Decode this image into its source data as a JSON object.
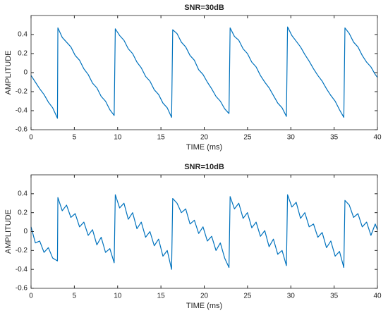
{
  "chart_data": [
    {
      "type": "line",
      "title": "SNR=30dB",
      "xlabel": "TIME (ms)",
      "ylabel": "AMPLITUDE",
      "x": [
        0,
        0.5,
        1,
        1.5,
        2,
        2.5,
        3.05,
        3.1,
        3.6,
        4.1,
        4.6,
        5.1,
        5.6,
        6.1,
        6.6,
        7.1,
        7.6,
        8.1,
        8.6,
        9.1,
        9.6,
        9.73,
        10.23,
        10.73,
        11.23,
        11.73,
        12.23,
        12.73,
        13.23,
        13.73,
        14.23,
        14.73,
        15.23,
        15.73,
        16.23,
        16.36,
        16.86,
        17.36,
        17.86,
        18.36,
        18.86,
        19.36,
        19.86,
        20.36,
        20.86,
        21.36,
        21.86,
        22.36,
        22.86,
        22.99,
        23.49,
        23.99,
        24.49,
        24.99,
        25.49,
        25.99,
        26.49,
        26.99,
        27.49,
        27.99,
        28.49,
        28.99,
        29.49,
        29.62,
        30.12,
        30.62,
        31.12,
        31.62,
        32.12,
        32.62,
        33.12,
        33.62,
        34.12,
        34.62,
        35.12,
        35.62,
        36.12,
        36.25,
        36.75,
        37.25,
        37.75,
        38.25,
        38.75,
        39.25,
        39.75,
        40
      ],
      "series": [
        {
          "name": "SNR=30dB",
          "color": "#0072bd",
          "values": [
            -0.03,
            -0.1,
            -0.17,
            -0.23,
            -0.31,
            -0.37,
            -0.48,
            0.47,
            0.37,
            0.32,
            0.27,
            0.18,
            0.13,
            0.04,
            -0.02,
            -0.11,
            -0.16,
            -0.25,
            -0.3,
            -0.39,
            -0.45,
            0.46,
            0.39,
            0.34,
            0.25,
            0.2,
            0.11,
            0.05,
            -0.04,
            -0.09,
            -0.18,
            -0.23,
            -0.32,
            -0.37,
            -0.47,
            0.45,
            0.41,
            0.32,
            0.27,
            0.18,
            0.13,
            0.03,
            -0.02,
            -0.1,
            -0.17,
            -0.25,
            -0.3,
            -0.38,
            -0.43,
            0.47,
            0.38,
            0.34,
            0.25,
            0.2,
            0.11,
            0.06,
            -0.03,
            -0.1,
            -0.16,
            -0.24,
            -0.32,
            -0.37,
            -0.46,
            0.48,
            0.39,
            0.33,
            0.27,
            0.19,
            0.12,
            0.04,
            -0.03,
            -0.09,
            -0.17,
            -0.24,
            -0.3,
            -0.39,
            -0.47,
            0.47,
            0.41,
            0.32,
            0.27,
            0.18,
            0.11,
            0.06,
            -0.02,
            -0.05
          ]
        }
      ],
      "xlim": [
        0,
        40
      ],
      "xticks": [
        0,
        5,
        10,
        15,
        20,
        25,
        30,
        35,
        40
      ],
      "ylim": [
        -0.6,
        0.6
      ],
      "yticks": [
        -0.6,
        -0.4,
        -0.2,
        0,
        0.2,
        0.4
      ]
    },
    {
      "type": "line",
      "title": "SNR=10dB",
      "xlabel": "TIME (ms)",
      "ylabel": "AMPLITUDE",
      "x": [
        0,
        0.5,
        1,
        1.5,
        2,
        2.5,
        3.05,
        3.1,
        3.6,
        4.1,
        4.6,
        5.1,
        5.6,
        6.1,
        6.6,
        7.1,
        7.6,
        8.1,
        8.6,
        9.1,
        9.6,
        9.73,
        10.23,
        10.73,
        11.23,
        11.73,
        12.23,
        12.73,
        13.23,
        13.73,
        14.23,
        14.73,
        15.23,
        15.73,
        16.23,
        16.36,
        16.86,
        17.36,
        17.86,
        18.36,
        18.86,
        19.36,
        19.86,
        20.36,
        20.86,
        21.36,
        21.86,
        22.36,
        22.86,
        22.99,
        23.49,
        23.99,
        24.49,
        24.99,
        25.49,
        25.99,
        26.49,
        26.99,
        27.49,
        27.99,
        28.49,
        28.99,
        29.49,
        29.62,
        30.12,
        30.62,
        31.12,
        31.62,
        32.12,
        32.62,
        33.12,
        33.62,
        34.12,
        34.62,
        35.12,
        35.62,
        36.12,
        36.25,
        36.75,
        37.25,
        37.75,
        38.25,
        38.75,
        39.25,
        39.75,
        40
      ],
      "series": [
        {
          "name": "SNR=10dB",
          "color": "#0072bd",
          "values": [
            0.05,
            -0.12,
            -0.1,
            -0.22,
            -0.17,
            -0.28,
            -0.31,
            0.36,
            0.22,
            0.28,
            0.15,
            0.19,
            0.05,
            0.1,
            -0.04,
            0.02,
            -0.14,
            -0.06,
            -0.22,
            -0.18,
            -0.33,
            0.39,
            0.25,
            0.3,
            0.13,
            0.2,
            0.03,
            0.1,
            -0.06,
            0,
            -0.15,
            -0.08,
            -0.26,
            -0.2,
            -0.4,
            0.35,
            0.3,
            0.2,
            0.24,
            0.08,
            0.12,
            -0.02,
            0.05,
            -0.1,
            -0.05,
            -0.2,
            -0.12,
            -0.28,
            -0.38,
            0.37,
            0.24,
            0.3,
            0.14,
            0.2,
            0.04,
            0.1,
            -0.05,
            0.01,
            -0.16,
            -0.08,
            -0.24,
            -0.2,
            -0.36,
            0.39,
            0.26,
            0.31,
            0.14,
            0.2,
            0.05,
            0.08,
            -0.06,
            -0.01,
            -0.17,
            -0.1,
            -0.26,
            -0.21,
            -0.38,
            0.33,
            0.28,
            0.15,
            0.19,
            0.05,
            0.1,
            -0.04,
            0.08,
            0.02
          ]
        }
      ],
      "xlim": [
        0,
        40
      ],
      "xticks": [
        0,
        5,
        10,
        15,
        20,
        25,
        30,
        35,
        40
      ],
      "ylim": [
        -0.6,
        0.6
      ],
      "yticks": [
        -0.6,
        -0.4,
        -0.2,
        0,
        0.2,
        0.4
      ]
    }
  ]
}
